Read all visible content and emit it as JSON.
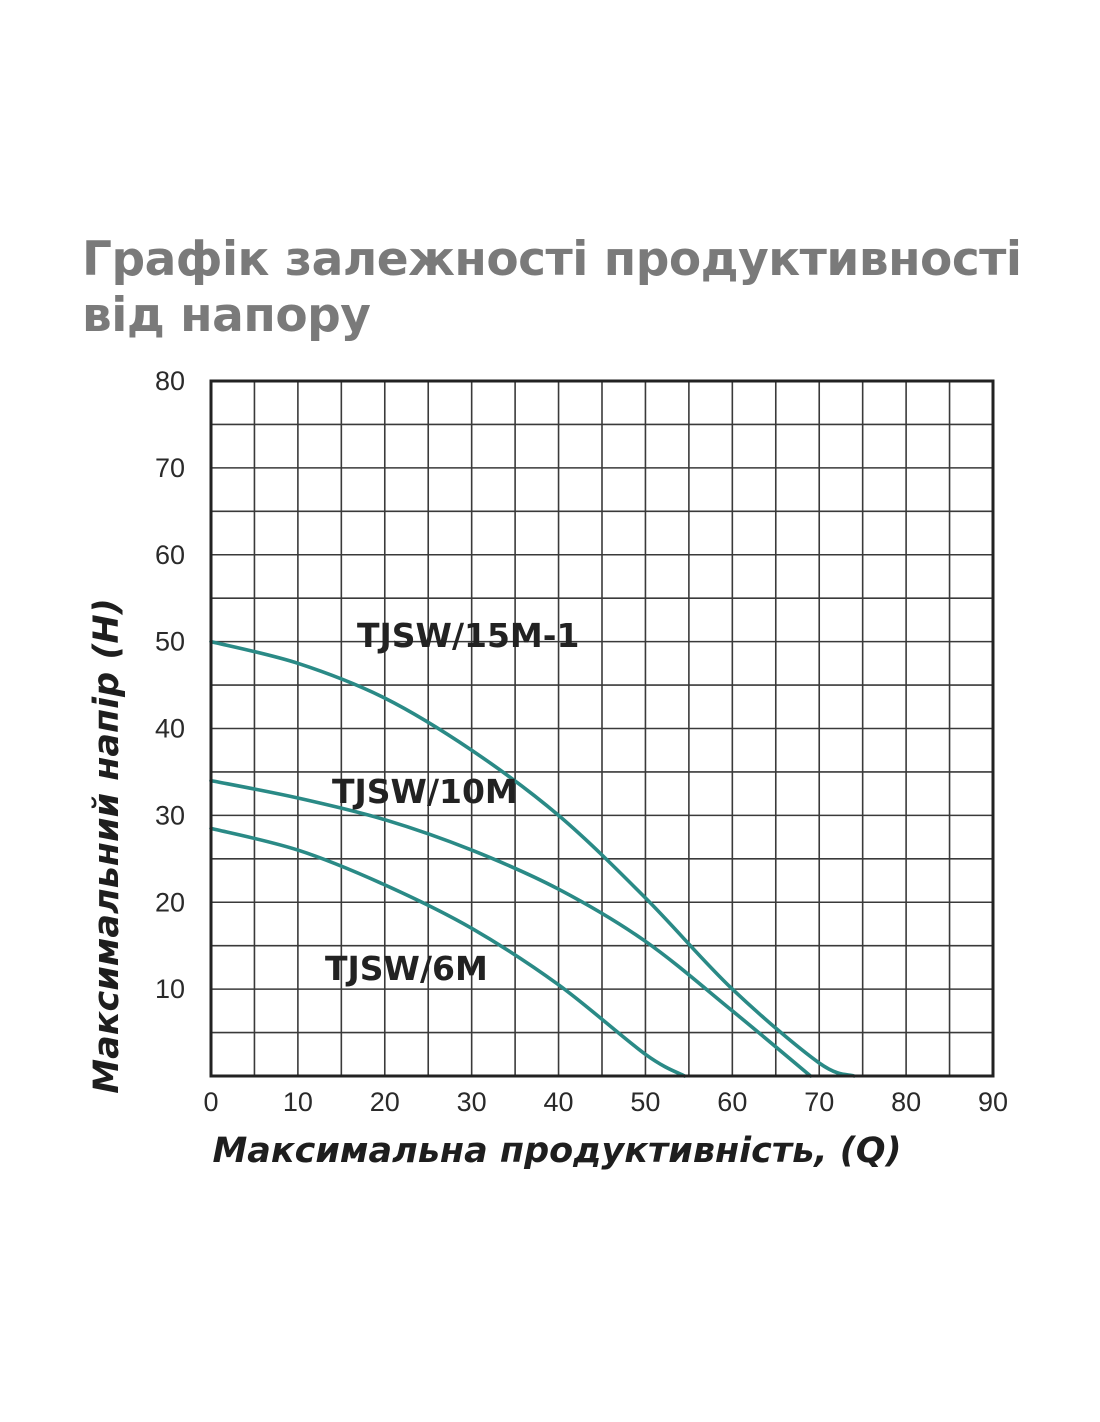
{
  "chart_data": {
    "type": "line",
    "title": "Графік залежності продуктивності від напору",
    "xlabel": "Максимальна продуктивність, (Q)",
    "ylabel": "Максимальний напір (H)",
    "xlim": [
      0,
      90
    ],
    "ylim": [
      0,
      80
    ],
    "x_ticks": [
      "0",
      "10",
      "20",
      "30",
      "40",
      "50",
      "60",
      "70",
      "80",
      "90"
    ],
    "y_ticks": [
      "10",
      "20",
      "30",
      "40",
      "50",
      "60",
      "70",
      "80"
    ],
    "grid": true,
    "grid_step_x": 5,
    "grid_step_y": 5,
    "line_color": "#2a8a86",
    "series": [
      {
        "name": "TJSW/15M-1",
        "x": [
          0,
          10,
          20,
          30,
          40,
          50,
          60,
          70,
          74
        ],
        "y": [
          50,
          47.5,
          43.5,
          37.5,
          30,
          20.5,
          10,
          1.5,
          0
        ]
      },
      {
        "name": "TJSW/10M",
        "x": [
          0,
          10,
          20,
          30,
          40,
          50,
          60,
          69
        ],
        "y": [
          34,
          32,
          29.5,
          26,
          21.5,
          15.5,
          7.5,
          0
        ]
      },
      {
        "name": "TJSW/6M",
        "x": [
          0,
          10,
          20,
          30,
          40,
          50,
          54.5
        ],
        "y": [
          28.5,
          26,
          22,
          17,
          10.5,
          2.5,
          0
        ]
      }
    ]
  }
}
